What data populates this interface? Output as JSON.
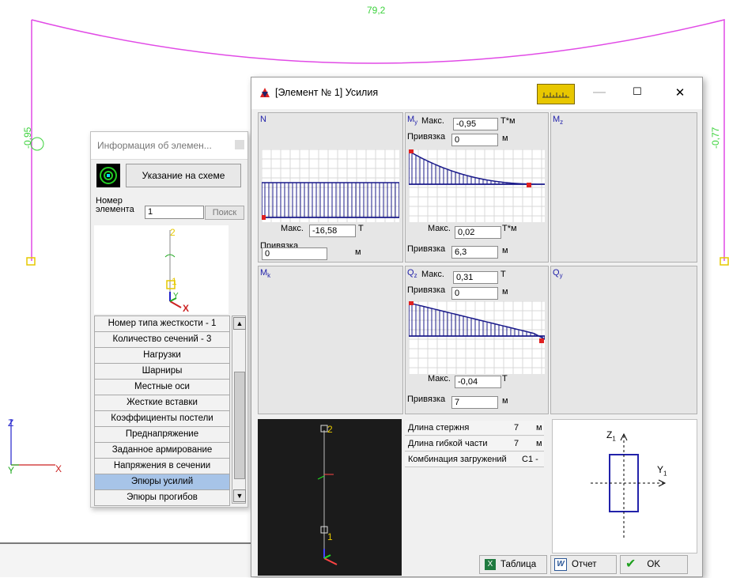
{
  "canvas": {
    "top_label": "79,2",
    "left_label": "-0,95",
    "right_label": "-0,77",
    "axis_z": "Z",
    "axis_y": "Y",
    "axis_x": "X",
    "colors": {
      "frame": "#e14ae6",
      "labels": "#3cd23c",
      "axes": "#2222cc"
    }
  },
  "info_window": {
    "title": "Информация об элемен...",
    "point_button": "Указание на схеме",
    "number_label_line1": "Номер",
    "number_label_line2": "элемента",
    "number_value": "1",
    "search_button": "Поиск",
    "mini_labels": {
      "top": "2",
      "bottom": "1",
      "x": "X",
      "y": "Y"
    },
    "menu_items": [
      "Номер типа жесткости - 1",
      "Количество сечений - 3",
      "Нагрузки",
      "Шарниры",
      "Местные оси",
      "Жесткие вставки",
      "Коэффициенты постели",
      "Преднапряжение",
      "Заданное армирование",
      "Напряжения в сечении",
      "Эпюры усилий",
      "Эпюры прогибов"
    ],
    "selected_index": 10
  },
  "dialog": {
    "title": "[Элемент № 1] Усилия",
    "panel_N": {
      "name": "N",
      "max_label": "Макс.",
      "max_value": "-16,58",
      "unit": "Т",
      "bind_label": "Привязка",
      "bind_value": "0",
      "bind_unit": "м"
    },
    "panel_My": {
      "name": "M",
      "sub": "y",
      "max_label": "Макс.",
      "max_value": "-0,95",
      "unit": "Т*м",
      "bind_label": "Привязка",
      "bind_value": "0",
      "bind_unit": "м",
      "min_label": "Макс.",
      "min_value": "0,02",
      "min_unit": "Т*м",
      "bind2_label": "Привязка",
      "bind2_value": "6,3",
      "bind2_unit": "м"
    },
    "panel_Mz": {
      "name": "M",
      "sub": "z"
    },
    "panel_Mk": {
      "name": "M",
      "sub": "k"
    },
    "panel_Qz": {
      "name": "Q",
      "sub": "z",
      "max_label": "Макс.",
      "max_value": "0,31",
      "unit": "Т",
      "bind_label": "Привязка",
      "bind_value": "0",
      "bind_unit": "м",
      "min_label": "Макс.",
      "min_value": "-0,04",
      "min_unit": "Т",
      "bind2_label": "Привязка",
      "bind2_value": "7",
      "bind2_unit": "м"
    },
    "panel_Qy": {
      "name": "Q",
      "sub": "y"
    },
    "view3d_labels": {
      "top": "2",
      "bottom": "1"
    },
    "props": [
      {
        "label": "Длина стержня",
        "value": "7",
        "unit": "м"
      },
      {
        "label": "Длина гибкой части",
        "value": "7",
        "unit": "м"
      },
      {
        "label": "Комбинация загружений",
        "value": "C1 -",
        "unit": ""
      }
    ],
    "section_axes": {
      "z": "Z",
      "z_sub": "1",
      "y": "Y",
      "y_sub": "1"
    },
    "buttons": {
      "table": "Таблица",
      "report": "Отчет",
      "ok": "OK"
    }
  }
}
